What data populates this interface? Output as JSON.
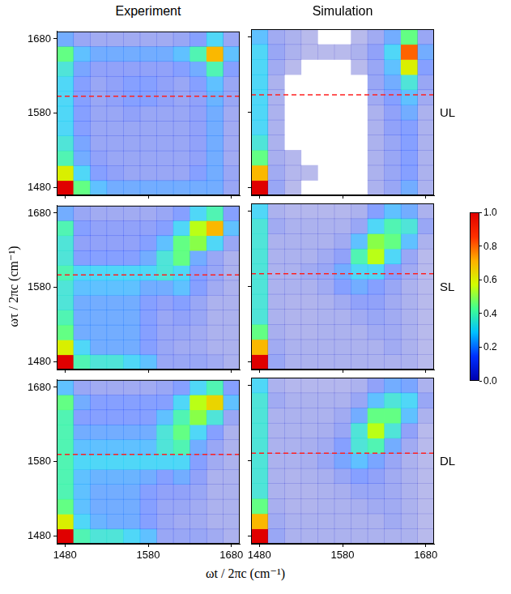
{
  "chart_data": [
    {
      "type": "heatmap",
      "xlim": [
        1470,
        1690
      ],
      "ylim": [
        1470,
        1690
      ],
      "xticks": [
        1480,
        1580,
        1680
      ],
      "yticks": [
        1480,
        1580,
        1680
      ],
      "tick_labels": "y",
      "x": [
        1480,
        1500,
        1520,
        1540,
        1560,
        1580,
        1600,
        1620,
        1640,
        1660,
        1680
      ],
      "y": [
        1480,
        1500,
        1520,
        1540,
        1560,
        1580,
        1600,
        1620,
        1640,
        1660,
        1680
      ],
      "cells": [
        [
          1.0,
          0.45,
          0.25,
          0.2,
          0.2,
          0.2,
          0.2,
          0.2,
          0.2,
          0.2,
          0.1
        ],
        [
          0.6,
          0.3,
          0.15,
          0.12,
          0.1,
          0.1,
          0.1,
          0.1,
          0.15,
          0.2,
          0.1
        ],
        [
          0.4,
          0.2,
          0.12,
          0.1,
          0.1,
          0.1,
          0.1,
          0.1,
          0.12,
          0.2,
          0.08
        ],
        [
          0.35,
          0.18,
          0.1,
          0.1,
          0.1,
          0.1,
          0.1,
          0.1,
          0.12,
          0.2,
          0.08
        ],
        [
          0.3,
          0.15,
          0.1,
          0.1,
          0.1,
          0.1,
          0.1,
          0.1,
          0.12,
          0.2,
          0.08
        ],
        [
          0.3,
          0.15,
          0.1,
          0.1,
          0.12,
          0.1,
          0.1,
          0.1,
          0.12,
          0.2,
          0.08
        ],
        [
          0.3,
          0.15,
          0.1,
          0.12,
          0.15,
          0.15,
          0.12,
          0.1,
          0.12,
          0.22,
          0.1
        ],
        [
          0.3,
          0.15,
          0.1,
          0.12,
          0.15,
          0.15,
          0.12,
          0.1,
          0.15,
          0.25,
          0.1
        ],
        [
          0.35,
          0.18,
          0.12,
          0.12,
          0.12,
          0.12,
          0.12,
          0.15,
          0.2,
          0.4,
          0.15
        ],
        [
          0.45,
          0.25,
          0.2,
          0.2,
          0.2,
          0.2,
          0.2,
          0.25,
          0.4,
          0.7,
          0.25
        ],
        [
          0.2,
          0.1,
          0.08,
          0.08,
          0.08,
          0.08,
          0.08,
          0.1,
          0.15,
          0.3,
          0.1
        ]
      ],
      "reference_line": {
        "y": 1603,
        "color": "#ff2020",
        "line_style": "dashed"
      }
    },
    {
      "type": "heatmap",
      "xlim": [
        1470,
        1690
      ],
      "ylim": [
        1470,
        1690
      ],
      "xticks": [
        1480,
        1580,
        1680
      ],
      "yticks": [
        1480,
        1580,
        1680
      ],
      "tick_labels": false,
      "x": [
        1480,
        1500,
        1520,
        1540,
        1560,
        1580,
        1600,
        1620,
        1640,
        1660,
        1680
      ],
      "y": [
        1480,
        1500,
        1520,
        1540,
        1560,
        1580,
        1600,
        1620,
        1640,
        1660,
        1680
      ],
      "cells": [
        [
          1.0,
          0.1,
          0.02,
          0,
          0,
          0,
          0,
          0.05,
          0.1,
          0.2,
          0.05
        ],
        [
          0.7,
          0.08,
          0.03,
          0.02,
          0,
          0,
          0,
          0.05,
          0.1,
          0.15,
          0.05
        ],
        [
          0.45,
          0.06,
          0.03,
          0,
          0,
          0,
          0,
          0.05,
          0.1,
          0.15,
          0.05
        ],
        [
          0.35,
          0.05,
          0,
          0,
          0,
          0,
          0,
          0.05,
          0.1,
          0.15,
          0.05
        ],
        [
          0.3,
          0.05,
          0,
          0,
          0,
          0,
          0,
          0.05,
          0.12,
          0.15,
          0.05
        ],
        [
          0.3,
          0.05,
          0,
          0,
          0,
          0,
          0,
          0.05,
          0.12,
          0.2,
          0.05
        ],
        [
          0.3,
          0.05,
          0,
          0,
          0,
          0,
          0,
          0.08,
          0.15,
          0.25,
          0.08
        ],
        [
          0.3,
          0.05,
          0,
          0,
          0,
          0,
          0,
          0.1,
          0.2,
          0.35,
          0.1
        ],
        [
          0.3,
          0.08,
          0.02,
          0,
          0,
          0,
          0.02,
          0.1,
          0.25,
          0.6,
          0.15
        ],
        [
          0.3,
          0.1,
          0.05,
          0.02,
          0.02,
          0.02,
          0.05,
          0.12,
          0.3,
          0.8,
          0.2
        ],
        [
          0.25,
          0.08,
          0.05,
          0.02,
          0,
          0,
          0.02,
          0.08,
          0.2,
          0.45,
          0.1
        ]
      ],
      "reference_line": {
        "y": 1603,
        "color": "#ff2020",
        "line_style": "dashed"
      }
    },
    {
      "type": "heatmap",
      "xlim": [
        1470,
        1690
      ],
      "ylim": [
        1470,
        1690
      ],
      "xticks": [
        1480,
        1580,
        1680
      ],
      "yticks": [
        1480,
        1580,
        1680
      ],
      "tick_labels": "y",
      "x": [
        1480,
        1500,
        1520,
        1540,
        1560,
        1580,
        1600,
        1620,
        1640,
        1660,
        1680
      ],
      "y": [
        1480,
        1500,
        1520,
        1540,
        1560,
        1580,
        1600,
        1620,
        1640,
        1660,
        1680
      ],
      "cells": [
        [
          1.0,
          0.4,
          0.35,
          0.35,
          0.3,
          0.25,
          0.1,
          0.1,
          0.1,
          0.08,
          0.05
        ],
        [
          0.6,
          0.3,
          0.2,
          0.2,
          0.2,
          0.15,
          0.1,
          0.08,
          0.08,
          0.05,
          0.05
        ],
        [
          0.45,
          0.2,
          0.2,
          0.2,
          0.2,
          0.15,
          0.1,
          0.1,
          0.08,
          0.05,
          0.05
        ],
        [
          0.4,
          0.2,
          0.2,
          0.2,
          0.2,
          0.15,
          0.1,
          0.12,
          0.1,
          0.05,
          0.05
        ],
        [
          0.35,
          0.2,
          0.2,
          0.2,
          0.2,
          0.15,
          0.12,
          0.15,
          0.1,
          0.05,
          0.05
        ],
        [
          0.35,
          0.25,
          0.25,
          0.25,
          0.25,
          0.2,
          0.2,
          0.25,
          0.15,
          0.08,
          0.05
        ],
        [
          0.4,
          0.3,
          0.3,
          0.3,
          0.3,
          0.3,
          0.35,
          0.3,
          0.15,
          0.1,
          0.05
        ],
        [
          0.35,
          0.15,
          0.15,
          0.15,
          0.15,
          0.2,
          0.35,
          0.45,
          0.2,
          0.1,
          0.05
        ],
        [
          0.35,
          0.12,
          0.12,
          0.12,
          0.12,
          0.15,
          0.25,
          0.45,
          0.5,
          0.3,
          0.1
        ],
        [
          0.4,
          0.15,
          0.12,
          0.12,
          0.12,
          0.12,
          0.15,
          0.3,
          0.55,
          0.7,
          0.25
        ],
        [
          0.2,
          0.1,
          0.08,
          0.08,
          0.08,
          0.08,
          0.1,
          0.15,
          0.3,
          0.4,
          0.15
        ]
      ],
      "reference_line": {
        "y": 1597,
        "color": "#ff2020",
        "line_style": "dashed"
      }
    },
    {
      "type": "heatmap",
      "xlim": [
        1470,
        1690
      ],
      "ylim": [
        1470,
        1690
      ],
      "xticks": [
        1480,
        1580,
        1680
      ],
      "yticks": [
        1480,
        1580,
        1680
      ],
      "tick_labels": false,
      "x": [
        1480,
        1500,
        1520,
        1540,
        1560,
        1580,
        1600,
        1620,
        1640,
        1660,
        1680
      ],
      "y": [
        1480,
        1500,
        1520,
        1540,
        1560,
        1580,
        1600,
        1620,
        1640,
        1660,
        1680
      ],
      "cells": [
        [
          1.0,
          0.1,
          0.05,
          0.05,
          0.05,
          0.05,
          0.05,
          0.05,
          0.05,
          0.05,
          0.02
        ],
        [
          0.7,
          0.08,
          0.05,
          0.05,
          0.05,
          0.05,
          0.05,
          0.05,
          0.08,
          0.05,
          0.02
        ],
        [
          0.45,
          0.06,
          0.04,
          0.04,
          0.05,
          0.05,
          0.05,
          0.08,
          0.08,
          0.05,
          0.02
        ],
        [
          0.35,
          0.05,
          0.04,
          0.04,
          0.05,
          0.05,
          0.08,
          0.1,
          0.08,
          0.05,
          0.02
        ],
        [
          0.35,
          0.05,
          0.04,
          0.04,
          0.05,
          0.08,
          0.12,
          0.12,
          0.08,
          0.05,
          0.02
        ],
        [
          0.35,
          0.05,
          0.05,
          0.05,
          0.08,
          0.15,
          0.2,
          0.15,
          0.1,
          0.05,
          0.02
        ],
        [
          0.35,
          0.05,
          0.05,
          0.08,
          0.1,
          0.2,
          0.3,
          0.3,
          0.15,
          0.08,
          0.02
        ],
        [
          0.35,
          0.05,
          0.05,
          0.05,
          0.08,
          0.12,
          0.4,
          0.55,
          0.3,
          0.1,
          0.02
        ],
        [
          0.35,
          0.05,
          0.05,
          0.05,
          0.05,
          0.08,
          0.25,
          0.5,
          0.45,
          0.25,
          0.05
        ],
        [
          0.35,
          0.08,
          0.05,
          0.05,
          0.05,
          0.05,
          0.1,
          0.3,
          0.4,
          0.35,
          0.1
        ],
        [
          0.3,
          0.05,
          0.03,
          0.03,
          0.03,
          0.03,
          0.05,
          0.15,
          0.25,
          0.2,
          0.05
        ]
      ],
      "reference_line": {
        "y": 1597,
        "color": "#ff2020",
        "line_style": "dashed"
      }
    },
    {
      "type": "heatmap",
      "xlim": [
        1470,
        1690
      ],
      "ylim": [
        1470,
        1690
      ],
      "xticks": [
        1480,
        1580,
        1680
      ],
      "yticks": [
        1480,
        1580,
        1680
      ],
      "tick_labels": true,
      "x": [
        1480,
        1500,
        1520,
        1540,
        1560,
        1580,
        1600,
        1620,
        1640,
        1660,
        1680
      ],
      "y": [
        1480,
        1500,
        1520,
        1540,
        1560,
        1580,
        1600,
        1620,
        1640,
        1660,
        1680
      ],
      "cells": [
        [
          1.0,
          0.4,
          0.35,
          0.35,
          0.3,
          0.25,
          0.1,
          0.1,
          0.1,
          0.08,
          0.05
        ],
        [
          0.6,
          0.3,
          0.22,
          0.2,
          0.2,
          0.15,
          0.1,
          0.08,
          0.08,
          0.05,
          0.05
        ],
        [
          0.45,
          0.25,
          0.2,
          0.2,
          0.2,
          0.15,
          0.1,
          0.1,
          0.08,
          0.05,
          0.05
        ],
        [
          0.4,
          0.25,
          0.2,
          0.2,
          0.2,
          0.15,
          0.12,
          0.12,
          0.1,
          0.05,
          0.05
        ],
        [
          0.4,
          0.25,
          0.22,
          0.22,
          0.22,
          0.2,
          0.15,
          0.2,
          0.12,
          0.05,
          0.05
        ],
        [
          0.4,
          0.3,
          0.3,
          0.3,
          0.3,
          0.3,
          0.3,
          0.3,
          0.15,
          0.08,
          0.05
        ],
        [
          0.4,
          0.25,
          0.25,
          0.25,
          0.25,
          0.25,
          0.35,
          0.4,
          0.2,
          0.1,
          0.05
        ],
        [
          0.4,
          0.2,
          0.2,
          0.2,
          0.2,
          0.2,
          0.35,
          0.45,
          0.3,
          0.15,
          0.05
        ],
        [
          0.4,
          0.15,
          0.15,
          0.15,
          0.15,
          0.15,
          0.25,
          0.4,
          0.5,
          0.35,
          0.1
        ],
        [
          0.45,
          0.2,
          0.15,
          0.15,
          0.15,
          0.15,
          0.15,
          0.3,
          0.55,
          0.65,
          0.25
        ],
        [
          0.25,
          0.1,
          0.08,
          0.08,
          0.08,
          0.08,
          0.1,
          0.15,
          0.3,
          0.4,
          0.15
        ]
      ],
      "reference_line": {
        "y": 1590,
        "color": "#ff2020",
        "line_style": "dashed"
      }
    },
    {
      "type": "heatmap",
      "xlim": [
        1470,
        1690
      ],
      "ylim": [
        1470,
        1690
      ],
      "xticks": [
        1480,
        1580,
        1680
      ],
      "yticks": [
        1480,
        1580,
        1680
      ],
      "tick_labels": "x",
      "x": [
        1480,
        1500,
        1520,
        1540,
        1560,
        1580,
        1600,
        1620,
        1640,
        1660,
        1680
      ],
      "y": [
        1480,
        1500,
        1520,
        1540,
        1560,
        1580,
        1600,
        1620,
        1640,
        1660,
        1680
      ],
      "cells": [
        [
          1.0,
          0.1,
          0.05,
          0.05,
          0.05,
          0.05,
          0.05,
          0.05,
          0.05,
          0.05,
          0.02
        ],
        [
          0.7,
          0.08,
          0.05,
          0.05,
          0.05,
          0.05,
          0.05,
          0.05,
          0.08,
          0.05,
          0.02
        ],
        [
          0.45,
          0.06,
          0.04,
          0.04,
          0.05,
          0.05,
          0.06,
          0.08,
          0.08,
          0.05,
          0.02
        ],
        [
          0.35,
          0.05,
          0.04,
          0.04,
          0.05,
          0.06,
          0.1,
          0.1,
          0.08,
          0.05,
          0.02
        ],
        [
          0.35,
          0.05,
          0.04,
          0.05,
          0.06,
          0.1,
          0.15,
          0.12,
          0.08,
          0.05,
          0.02
        ],
        [
          0.35,
          0.05,
          0.05,
          0.06,
          0.1,
          0.18,
          0.25,
          0.18,
          0.1,
          0.05,
          0.02
        ],
        [
          0.35,
          0.05,
          0.05,
          0.06,
          0.08,
          0.15,
          0.35,
          0.4,
          0.2,
          0.08,
          0.02
        ],
        [
          0.35,
          0.05,
          0.05,
          0.05,
          0.06,
          0.1,
          0.35,
          0.55,
          0.35,
          0.12,
          0.02
        ],
        [
          0.35,
          0.05,
          0.05,
          0.05,
          0.05,
          0.08,
          0.2,
          0.45,
          0.45,
          0.25,
          0.05
        ],
        [
          0.35,
          0.08,
          0.05,
          0.05,
          0.05,
          0.05,
          0.1,
          0.25,
          0.35,
          0.3,
          0.1
        ],
        [
          0.3,
          0.05,
          0.03,
          0.03,
          0.03,
          0.03,
          0.05,
          0.12,
          0.2,
          0.18,
          0.05
        ]
      ],
      "reference_line": {
        "y": 1590,
        "color": "#ff2020",
        "line_style": "dashed"
      }
    }
  ],
  "figure": {
    "column_titles": [
      "Experiment",
      "Simulation"
    ],
    "row_labels": [
      "UL",
      "SL",
      "DL"
    ],
    "x_label": "ωt / 2πc (cm⁻¹)",
    "y_label": "ωτ / 2πc (cm⁻¹)",
    "colorbar": {
      "range": [
        0,
        1
      ],
      "ticks": [
        {
          "value": 0,
          "label": "0.0"
        },
        {
          "value": 0.2,
          "label": "0.2"
        },
        {
          "value": 0.4,
          "label": "0.4"
        },
        {
          "value": 0.6,
          "label": "0.6"
        },
        {
          "value": 0.8,
          "label": "0.8"
        },
        {
          "value": 1,
          "label": "1.0"
        }
      ],
      "colors": [
        "#0000b0",
        "#0030ff",
        "#00c0ff",
        "#40ff90",
        "#d0ff00",
        "#ffb000",
        "#ff3000",
        "#e00000"
      ]
    }
  }
}
